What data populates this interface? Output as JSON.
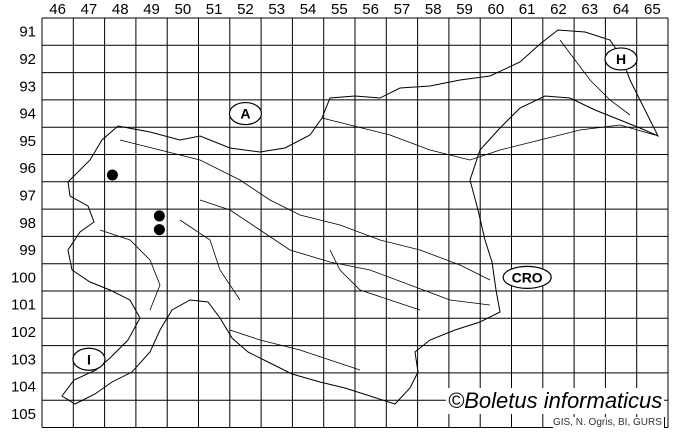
{
  "map": {
    "column_labels": [
      "46",
      "47",
      "48",
      "49",
      "50",
      "51",
      "52",
      "53",
      "54",
      "55",
      "56",
      "57",
      "58",
      "59",
      "60",
      "61",
      "62",
      "63",
      "64",
      "65"
    ],
    "row_labels": [
      "91",
      "92",
      "93",
      "94",
      "95",
      "96",
      "97",
      "98",
      "99",
      "100",
      "101",
      "102",
      "103",
      "104",
      "105"
    ],
    "country_labels": [
      {
        "text": "A",
        "col": 52,
        "row": 94
      },
      {
        "text": "H",
        "col": 64,
        "row": 92
      },
      {
        "text": "CRO",
        "col": 61,
        "row": 100
      },
      {
        "text": "I",
        "col": 47,
        "row": 103
      }
    ],
    "records": [
      {
        "col": 48,
        "row": 96,
        "quadrant": 3
      },
      {
        "col": 49,
        "row": 98,
        "quadrant": 2
      },
      {
        "col": 49,
        "row": 98,
        "quadrant": 4
      }
    ],
    "record_color": "#000000"
  },
  "credit": "©Boletus informaticus",
  "source": "GIS, N. Ogris, BI, GURS"
}
